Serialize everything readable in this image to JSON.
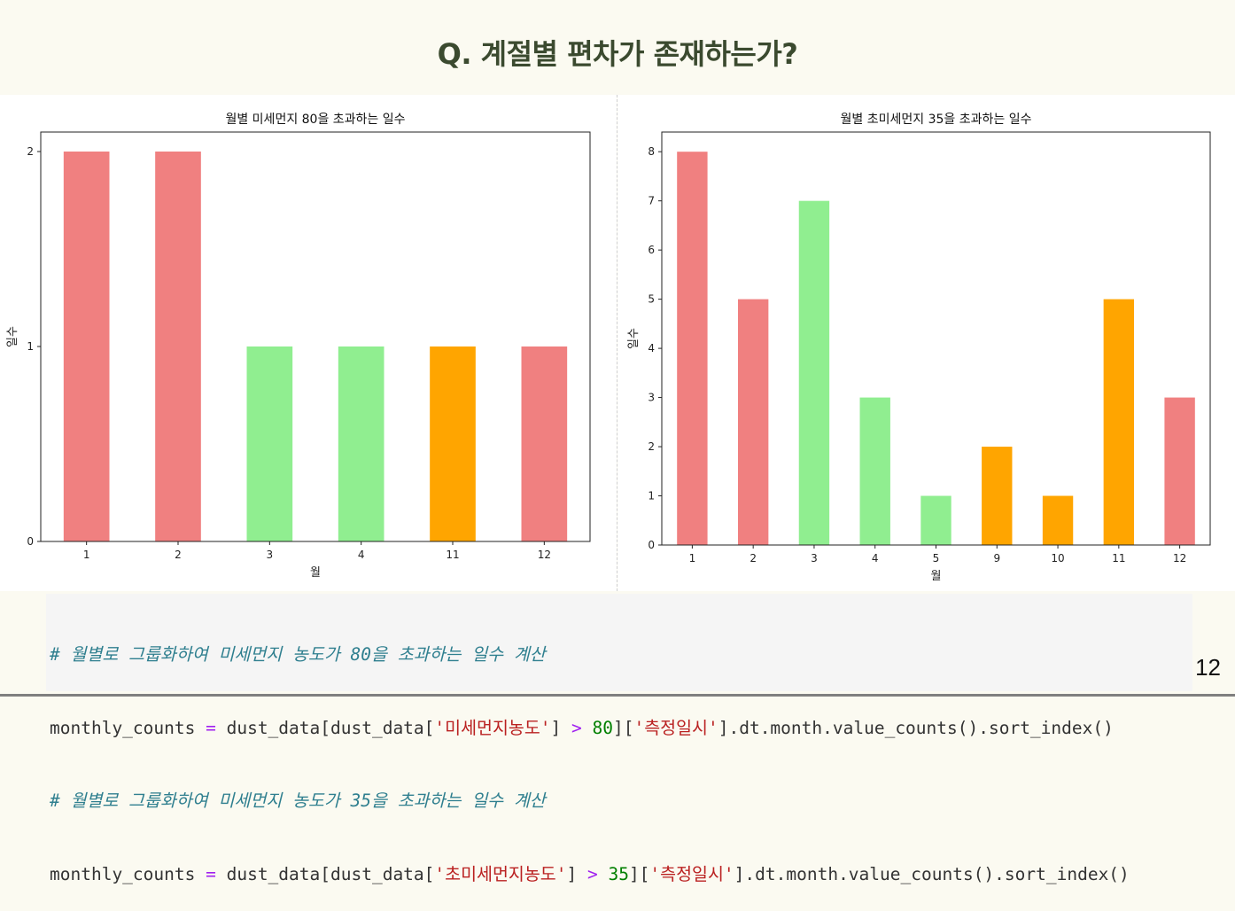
{
  "slide": {
    "title": "Q. 계절별 편차가 존재하는가?",
    "page_number": "12"
  },
  "chart_data": [
    {
      "type": "bar",
      "title": "월별 미세먼지 80을 초과하는 일수",
      "xlabel": "월",
      "ylabel": "일수",
      "categories": [
        "1",
        "2",
        "3",
        "4",
        "11",
        "12"
      ],
      "values": [
        2,
        2,
        1,
        1,
        1,
        1
      ],
      "bar_colors": [
        "#f08080",
        "#f08080",
        "#90ee90",
        "#90ee90",
        "#ffa500",
        "#f08080"
      ],
      "yticks": [
        0,
        1,
        2
      ],
      "ylim": [
        0,
        2.1
      ]
    },
    {
      "type": "bar",
      "title": "월별 초미세먼지 35을 초과하는 일수",
      "xlabel": "월",
      "ylabel": "일수",
      "categories": [
        "1",
        "2",
        "3",
        "4",
        "5",
        "9",
        "10",
        "11",
        "12"
      ],
      "values": [
        8,
        5,
        7,
        3,
        1,
        2,
        1,
        5,
        3
      ],
      "bar_colors": [
        "#f08080",
        "#f08080",
        "#90ee90",
        "#90ee90",
        "#90ee90",
        "#ffa500",
        "#ffa500",
        "#ffa500",
        "#f08080"
      ],
      "yticks": [
        0,
        1,
        2,
        3,
        4,
        5,
        6,
        7,
        8
      ],
      "ylim": [
        0,
        8.4
      ]
    }
  ],
  "code": {
    "line1_comment": "# 월별로 그룹화하여 미세먼지 농도가 80을 초과하는 일수 계산",
    "line2": {
      "a": "monthly_counts ",
      "eq": "=",
      "b": " dust_data[dust_data[",
      "s1": "'미세먼지농도'",
      "c": "] ",
      "gt": ">",
      "d": " ",
      "n": "80",
      "e": "][",
      "s2": "'측정일시'",
      "f": "].dt.month.value_counts().sort_index()"
    },
    "line3_comment": "# 월별로 그룹화하여 미세먼지 농도가 35을 초과하는 일수 계산",
    "line4": {
      "a": "monthly_counts ",
      "eq": "=",
      "b": " dust_data[dust_data[",
      "s1": "'초미세먼지농도'",
      "c": "] ",
      "gt": ">",
      "d": " ",
      "n": "35",
      "e": "][",
      "s2": "'측정일시'",
      "f": "].dt.month.value_counts().sort_index()"
    }
  }
}
